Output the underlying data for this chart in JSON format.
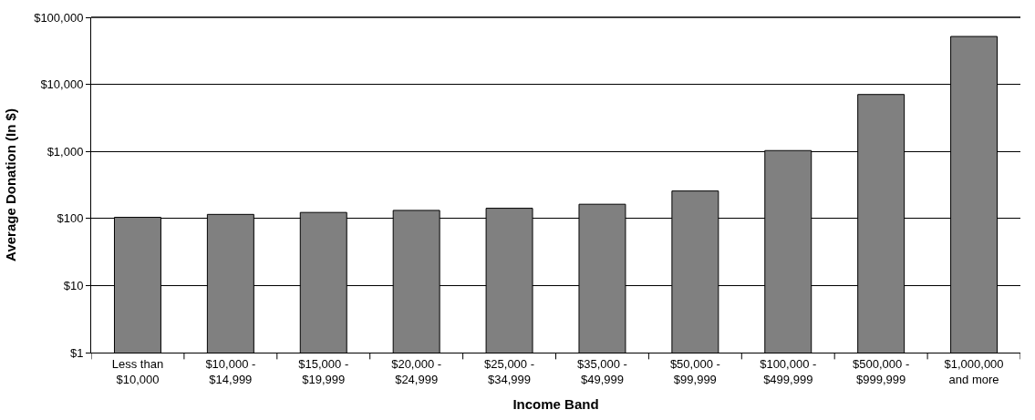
{
  "chart_data": {
    "type": "bar",
    "xlabel": "Income Band",
    "ylabel": "Average Donation (In $)",
    "categories": [
      "Less than\n$10,000",
      "$10,000 -\n$14,999",
      "$15,000 -\n$19,999",
      "$20,000 -\n$24,999",
      "$25,000 -\n$34,999",
      "$35,000 -\n$49,999",
      "$50,000 -\n$99,999",
      "$100,000 -\n$499,999",
      "$500,000 -\n$999,999",
      "$1,000,000\nand more"
    ],
    "values": [
      104,
      115,
      123,
      132,
      142,
      163,
      257,
      1030,
      7060,
      51800
    ],
    "color": "#808080",
    "log": true,
    "ylim": [
      1,
      100000
    ],
    "yticks": [
      {
        "value": 1,
        "label": "$1"
      },
      {
        "value": 10,
        "label": "$10"
      },
      {
        "value": 100,
        "label": "$100"
      },
      {
        "value": 1000,
        "label": "$1,000"
      },
      {
        "value": 10000,
        "label": "$10,000"
      },
      {
        "value": 100000,
        "label": "$100,000"
      }
    ],
    "grid": "y"
  }
}
